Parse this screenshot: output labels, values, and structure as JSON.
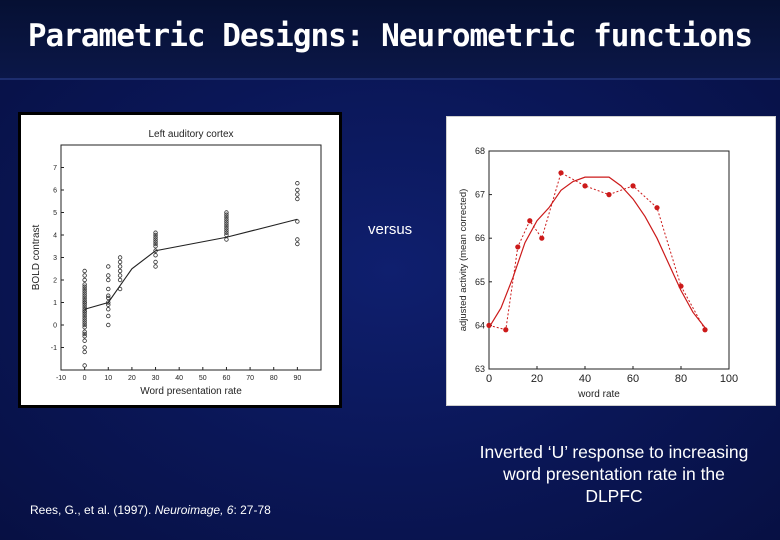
{
  "slide": {
    "title": "Parametric Designs: Neurometric functions",
    "versus": "versus",
    "citation": {
      "authors": "Rees, G., et al. (1997). ",
      "journal": "Neuroimage, 6",
      "pages": ": 27-78"
    },
    "caption": "Inverted ‘U’ response to increasing word presentation rate in the DLPFC"
  },
  "chart_data": [
    {
      "type": "scatter",
      "title": "Left auditory cortex",
      "xlabel": "Word presentation rate",
      "ylabel": "BOLD contrast",
      "xlim": [
        -10,
        100
      ],
      "ylim": [
        -2,
        8
      ],
      "xticks": [
        -10,
        0,
        10,
        20,
        30,
        40,
        50,
        60,
        70,
        80,
        90
      ],
      "yticks": [
        -1,
        0,
        1,
        2,
        3,
        4,
        5,
        6,
        7
      ],
      "series": [
        {
          "x": [
            0,
            0,
            0,
            0,
            0,
            0,
            0,
            0,
            0,
            0,
            0,
            0,
            0,
            0,
            0,
            0,
            0,
            0,
            0,
            0,
            0,
            0,
            0,
            0,
            0,
            0,
            0,
            0,
            0,
            0,
            0,
            0
          ],
          "y": [
            -1.8,
            -1.2,
            -1.0,
            -0.7,
            -0.5,
            -0.3,
            -0.1,
            0.0,
            0.1,
            0.2,
            0.3,
            0.4,
            0.5,
            0.6,
            0.7,
            0.8,
            0.9,
            1.0,
            1.1,
            1.2,
            1.3,
            1.4,
            1.5,
            1.6,
            1.7,
            1.8,
            2.0,
            2.2,
            2.4,
            -0.4,
            0.6,
            1.0
          ]
        },
        {
          "x": [
            10,
            10,
            10,
            10,
            10,
            10,
            10,
            10,
            10,
            10,
            10
          ],
          "y": [
            0.0,
            0.4,
            0.7,
            0.9,
            1.0,
            1.2,
            1.3,
            1.6,
            2.0,
            2.2,
            2.6
          ]
        },
        {
          "x": [
            15,
            15,
            15,
            15,
            15,
            15,
            15
          ],
          "y": [
            1.6,
            2.0,
            2.2,
            2.4,
            2.6,
            2.8,
            3.0
          ]
        },
        {
          "x": [
            30,
            30,
            30,
            30,
            30,
            30,
            30,
            30,
            30,
            30,
            30
          ],
          "y": [
            2.6,
            2.8,
            3.1,
            3.3,
            3.5,
            3.6,
            3.7,
            3.8,
            3.9,
            4.0,
            4.1
          ]
        },
        {
          "x": [
            60,
            60,
            60,
            60,
            60,
            60,
            60,
            60,
            60,
            60,
            60,
            60
          ],
          "y": [
            3.8,
            4.0,
            4.1,
            4.2,
            4.3,
            4.4,
            4.5,
            4.6,
            4.7,
            4.8,
            4.9,
            5.0
          ]
        },
        {
          "x": [
            90,
            90,
            90,
            90,
            90,
            90,
            90
          ],
          "y": [
            3.6,
            3.8,
            4.6,
            5.6,
            5.8,
            6.0,
            6.3
          ]
        }
      ],
      "fit": {
        "x": [
          0,
          10,
          20,
          30,
          60,
          90
        ],
        "y": [
          0.7,
          1.0,
          2.5,
          3.3,
          3.9,
          4.7
        ]
      }
    },
    {
      "type": "line",
      "title": "",
      "xlabel": "word rate",
      "ylabel": "adjusted activity (mean corrected)",
      "xlim": [
        0,
        100
      ],
      "ylim": [
        63,
        68
      ],
      "xticks": [
        0,
        20,
        40,
        60,
        80,
        100
      ],
      "yticks": [
        63,
        64,
        65,
        66,
        67,
        68
      ],
      "series": [
        {
          "style": "dotted-markers",
          "x": [
            0,
            7,
            12,
            17,
            22,
            30,
            40,
            50,
            60,
            70,
            80,
            90
          ],
          "y": [
            64.0,
            63.9,
            65.8,
            66.4,
            66.0,
            67.5,
            67.2,
            67.0,
            67.2,
            66.7,
            64.9,
            63.9
          ]
        },
        {
          "style": "solid-fit",
          "x": [
            0,
            5,
            10,
            15,
            20,
            25,
            30,
            35,
            40,
            45,
            50,
            55,
            60,
            65,
            70,
            75,
            80,
            85,
            90
          ],
          "y": [
            63.95,
            64.4,
            65.1,
            65.9,
            66.4,
            66.7,
            67.1,
            67.3,
            67.4,
            67.4,
            67.4,
            67.2,
            66.9,
            66.5,
            66.0,
            65.4,
            64.8,
            64.3,
            63.95
          ]
        }
      ],
      "color": "#cc1a1a"
    }
  ]
}
